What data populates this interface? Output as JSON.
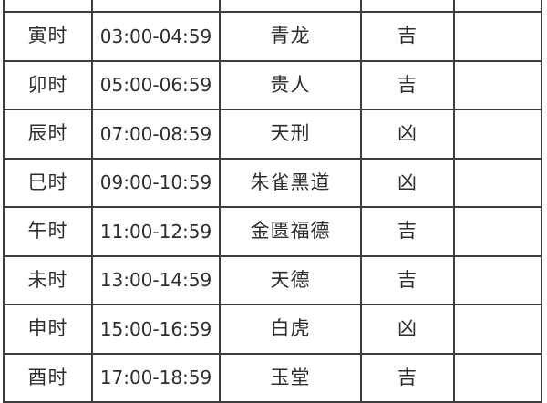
{
  "colors": {
    "background": "#ffffff",
    "border": "#3d3d3d",
    "text": "#2e2e2e"
  },
  "table": {
    "description": "Chinese almanac hour table: hour branch, time range, duty star, auspicious verdict",
    "rows": [
      {
        "hour": "寅时",
        "time_range": "03:00-04:59",
        "star": "青龙",
        "luck": "吉",
        "extra": ""
      },
      {
        "hour": "卯时",
        "time_range": "05:00-06:59",
        "star": "贵人",
        "luck": "吉",
        "extra": ""
      },
      {
        "hour": "辰时",
        "time_range": "07:00-08:59",
        "star": "天刑",
        "luck": "凶",
        "extra": ""
      },
      {
        "hour": "巳时",
        "time_range": "09:00-10:59",
        "star": "朱雀黑道",
        "luck": "凶",
        "extra": ""
      },
      {
        "hour": "午时",
        "time_range": "11:00-12:59",
        "star": "金匮福德",
        "luck": "吉",
        "extra": ""
      },
      {
        "hour": "未时",
        "time_range": "13:00-14:59",
        "star": "天德",
        "luck": "吉",
        "extra": ""
      },
      {
        "hour": "申时",
        "time_range": "15:00-16:59",
        "star": "白虎",
        "luck": "凶",
        "extra": ""
      },
      {
        "hour": "酉时",
        "time_range": "17:00-18:59",
        "star": "玉堂",
        "luck": "吉",
        "extra": ""
      }
    ]
  }
}
